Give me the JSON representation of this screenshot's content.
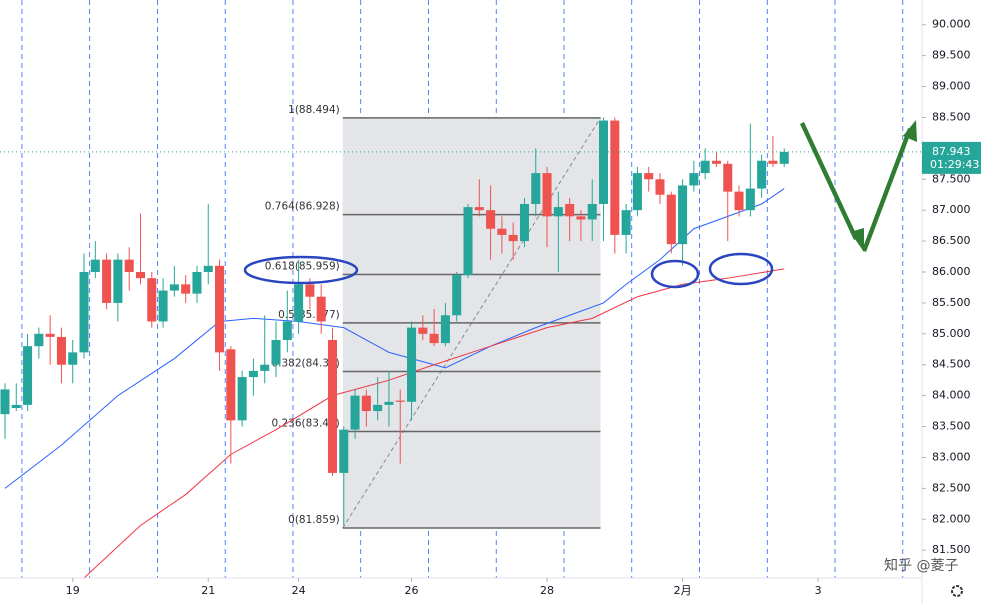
{
  "chart_data": {
    "type": "candlestick",
    "open": [
      83.7,
      83.8,
      83.85,
      84.8,
      85.0,
      84.95,
      84.5,
      84.7,
      86.0,
      86.2,
      85.5,
      86.2,
      86.0,
      85.9,
      85.2,
      85.7,
      85.8,
      85.65,
      86.0,
      86.1,
      84.75,
      83.6,
      84.3,
      84.4,
      84.5,
      84.9,
      85.2,
      85.8,
      85.6,
      84.9,
      82.75,
      83.45,
      84.0,
      83.75,
      83.85,
      83.92,
      83.9,
      85.1,
      85.0,
      84.85,
      85.3,
      85.95,
      87.05,
      87.0,
      86.7,
      86.6,
      86.5,
      87.1,
      87.6,
      86.9,
      87.1,
      86.9,
      86.85,
      87.1,
      88.45,
      86.6,
      87.0,
      87.6,
      87.5,
      87.25,
      86.45,
      87.4,
      87.6,
      87.8,
      87.75,
      87.3,
      87.0,
      87.35,
      87.8,
      87.75
    ],
    "high": [
      84.2,
      84.2,
      85.0,
      85.1,
      85.3,
      85.1,
      84.9,
      86.3,
      86.5,
      86.3,
      86.3,
      86.4,
      86.95,
      86.0,
      85.9,
      86.1,
      85.95,
      86.1,
      87.1,
      86.2,
      84.8,
      84.4,
      84.6,
      85.3,
      85.2,
      85.7,
      86.2,
      85.9,
      85.8,
      85.1,
      83.5,
      84.1,
      84.1,
      84.3,
      84.4,
      84.1,
      85.2,
      85.3,
      85.4,
      85.5,
      86.0,
      87.1,
      87.5,
      87.4,
      86.9,
      86.8,
      87.2,
      88.0,
      87.7,
      87.3,
      87.2,
      87.0,
      87.5,
      88.5,
      88.5,
      87.1,
      87.7,
      87.7,
      87.6,
      87.3,
      87.5,
      87.8,
      88.0,
      87.95,
      87.8,
      87.4,
      88.4,
      87.9,
      88.2,
      88.0
    ],
    "low": [
      83.3,
      83.75,
      83.75,
      84.6,
      84.5,
      84.2,
      84.2,
      84.6,
      85.9,
      85.4,
      85.2,
      85.7,
      85.8,
      85.1,
      85.1,
      85.6,
      85.5,
      85.5,
      85.8,
      84.4,
      82.9,
      83.5,
      84.0,
      84.2,
      84.3,
      84.7,
      85.0,
      85.4,
      85.0,
      82.7,
      81.9,
      83.3,
      83.5,
      83.6,
      83.5,
      82.9,
      83.6,
      84.9,
      84.8,
      84.8,
      85.2,
      85.9,
      86.9,
      86.2,
      86.3,
      86.2,
      86.4,
      86.9,
      86.4,
      86.0,
      86.5,
      86.5,
      86.5,
      86.5,
      86.3,
      86.3,
      86.9,
      87.3,
      87.1,
      86.3,
      86.1,
      87.3,
      87.5,
      87.7,
      86.5,
      86.9,
      86.9,
      87.2,
      87.7,
      87.7
    ],
    "close": [
      84.1,
      83.85,
      84.8,
      85.0,
      84.95,
      84.5,
      84.7,
      86.0,
      86.2,
      85.5,
      86.2,
      86.0,
      85.9,
      85.2,
      85.7,
      85.8,
      85.65,
      86.0,
      86.1,
      84.7,
      83.6,
      84.3,
      84.4,
      84.5,
      84.9,
      85.2,
      85.8,
      85.6,
      85.2,
      82.75,
      83.45,
      84.0,
      83.75,
      83.85,
      83.9,
      83.9,
      85.1,
      85.0,
      84.85,
      85.3,
      85.95,
      87.05,
      87.0,
      86.7,
      86.6,
      86.5,
      87.1,
      87.6,
      86.9,
      87.05,
      86.9,
      86.85,
      87.1,
      88.45,
      86.6,
      87.0,
      87.6,
      87.5,
      87.25,
      86.45,
      87.4,
      87.6,
      87.8,
      87.75,
      87.3,
      87.0,
      87.35,
      87.8,
      87.75,
      87.943
    ],
    "up_color": "#26a69a",
    "down_color": "#ef5350",
    "lines": [
      {
        "color": "#2962ff",
        "x": [
          0,
          5,
          10,
          15,
          19,
          22,
          26,
          30,
          34,
          38,
          39,
          43,
          47,
          50,
          53,
          55,
          58,
          61,
          64,
          67,
          69
        ],
        "values": [
          82.5,
          83.2,
          84.0,
          84.6,
          85.2,
          85.25,
          85.2,
          85.1,
          84.7,
          84.5,
          84.45,
          84.8,
          85.1,
          85.3,
          85.5,
          85.8,
          86.2,
          86.7,
          86.9,
          87.1,
          87.35
        ]
      },
      {
        "color": "#f23645",
        "x": [
          7,
          12,
          16,
          20,
          24,
          29,
          34,
          38,
          43,
          48,
          52,
          56,
          60,
          64,
          69
        ],
        "values": [
          81.05,
          81.9,
          82.4,
          83.05,
          83.45,
          84.0,
          84.25,
          84.5,
          84.8,
          85.1,
          85.25,
          85.6,
          85.8,
          85.9,
          86.05
        ]
      }
    ],
    "fib_levels": [
      {
        "value": 88.494,
        "label": "1(88.494)"
      },
      {
        "value": 86.928,
        "label": "0.764(86.928)"
      },
      {
        "value": 85.959,
        "label": "0.618(85.959)"
      },
      {
        "value": 85.177,
        "label": "0.5(85.177)"
      },
      {
        "value": 84.39,
        "label": "0.382(84.39)"
      },
      {
        "value": 83.42,
        "label": "0.236(83.42)"
      },
      {
        "value": 81.859,
        "label": "0(81.859)"
      }
    ],
    "last": {
      "value": 87.943,
      "label": "87.943"
    },
    "countdown": "01:29:43",
    "xlim": [
      -0.44,
      81.2
    ],
    "ylim": [
      81.05,
      90.4
    ],
    "xticks": [
      {
        "value": 6,
        "label": "19"
      },
      {
        "value": 18,
        "label": "21"
      },
      {
        "value": 26,
        "label": "24"
      },
      {
        "value": 36,
        "label": "26"
      },
      {
        "value": 48,
        "label": "28"
      },
      {
        "value": 60,
        "label": "2月"
      },
      {
        "value": 72,
        "label": "3"
      }
    ],
    "yticks": [
      {
        "value": 90,
        "label": "90.000"
      },
      {
        "value": 89.5,
        "label": "89.500"
      },
      {
        "value": 89,
        "label": "89.000"
      },
      {
        "value": 88.5,
        "label": "88.500"
      },
      {
        "value": 88,
        "label": "88.000"
      },
      {
        "value": 87.5,
        "label": "87.500"
      },
      {
        "value": 87,
        "label": "87.000"
      },
      {
        "value": 86.5,
        "label": "86.500"
      },
      {
        "value": 86,
        "label": "86.000"
      },
      {
        "value": 85.5,
        "label": "85.500"
      },
      {
        "value": 85,
        "label": "85.000"
      },
      {
        "value": 84.5,
        "label": "84.500"
      },
      {
        "value": 84,
        "label": "84.000"
      },
      {
        "value": 83.5,
        "label": "83.500"
      },
      {
        "value": 83,
        "label": "83.000"
      },
      {
        "value": 82.5,
        "label": "82.500"
      },
      {
        "value": 82,
        "label": "82.000"
      },
      {
        "value": 81.5,
        "label": "81.500"
      }
    ],
    "watermark": "知乎 @菱子"
  }
}
